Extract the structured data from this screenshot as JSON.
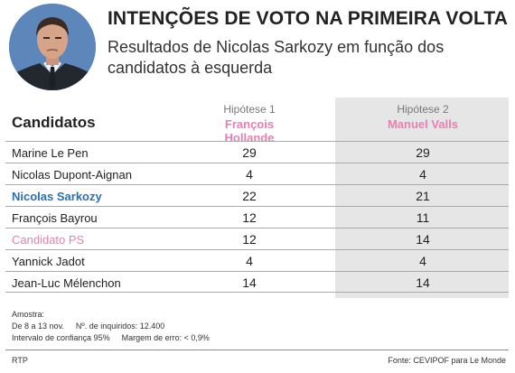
{
  "title": "INTENÇÕES DE VOTO NA PRIMEIRA VOLTA",
  "subtitle": "Resultados de Nicolas Sarkozy em função dos candidatos à esquerda",
  "chart_data": {
    "type": "table",
    "row_header": "Candidatos",
    "columns": [
      {
        "hypothesis": "Hipótese 1",
        "candidate": "François Hollande"
      },
      {
        "hypothesis": "Hipótese 2",
        "candidate": "Manuel Valls"
      }
    ],
    "rows": [
      {
        "name": "Marine Le Pen",
        "values": [
          29,
          29
        ],
        "highlight": ""
      },
      {
        "name": "Nicolas Dupont-Aignan",
        "values": [
          4,
          4
        ],
        "highlight": ""
      },
      {
        "name": "Nicolas Sarkozy",
        "values": [
          22,
          21
        ],
        "highlight": "blue"
      },
      {
        "name": "François Bayrou",
        "values": [
          12,
          11
        ],
        "highlight": ""
      },
      {
        "name": "Candidato PS",
        "values": [
          12,
          14
        ],
        "highlight": "pink"
      },
      {
        "name": "Yannick Jadot",
        "values": [
          4,
          4
        ],
        "highlight": ""
      },
      {
        "name": "Jean-Luc Mélenchon",
        "values": [
          14,
          14
        ],
        "highlight": ""
      }
    ],
    "colors": {
      "blue": "#2a6fb4",
      "pink": "#e87fb3",
      "column_shade": "#e6e6e6"
    }
  },
  "notes": {
    "label": "Amostra:",
    "dates": "De 8 a 13 nov.",
    "respondents": "Nº. de inquiridos: 12.400",
    "confidence": "Intervalo de confiança 95%",
    "margin": "Margem de erro: < 0,9%"
  },
  "footer": {
    "credit": "RTP",
    "source": "Fonte: CEVIPOF para Le Monde"
  }
}
